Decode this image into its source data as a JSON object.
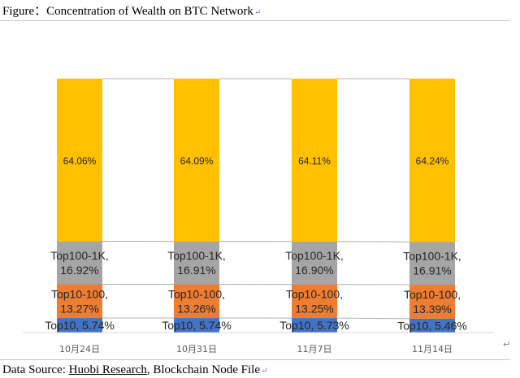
{
  "title": {
    "prefix": "Figure：",
    "text": "Concentration of Wealth on BTC Network"
  },
  "source": {
    "prefix": "Data Source: ",
    "link": "Huobi Research",
    "suffix": ", Blockchain Node File"
  },
  "chart_data": {
    "type": "bar",
    "stacked": true,
    "percent": true,
    "categories": [
      "10月24日",
      "10月31日",
      "11月7日",
      "11月14日"
    ],
    "series": [
      {
        "name": "Top10",
        "color": "#4472c4",
        "values": [
          5.74,
          5.74,
          5.73,
          5.46
        ],
        "labels": [
          "Top10, 5.74%",
          "Top10, 5.74%",
          "Top10, 5.73%",
          "Top10, 5.46%"
        ]
      },
      {
        "name": "Top10-100",
        "color": "#ed7d31",
        "values": [
          13.27,
          13.26,
          13.25,
          13.39
        ],
        "labels": [
          [
            "Top10-100,",
            "13.27%"
          ],
          [
            "Top10-100,",
            "13.26%"
          ],
          [
            "Top10-100,",
            "13.25%"
          ],
          [
            "Top10-100,",
            "13.39%"
          ]
        ]
      },
      {
        "name": "Top100-1K",
        "color": "#a5a5a5",
        "values": [
          16.92,
          16.91,
          16.9,
          16.91
        ],
        "labels": [
          [
            "Top100-1K,",
            "16.92%"
          ],
          [
            "Top100-1K,",
            "16.91%"
          ],
          [
            "Top100-1K,",
            "16.90%"
          ],
          [
            "Top100-1K,",
            "16.91%"
          ]
        ]
      },
      {
        "name": "",
        "color": "#ffc000",
        "values": [
          64.06,
          64.09,
          64.11,
          64.24
        ],
        "labels": [
          "64.06%",
          "64.09%",
          "64.11%",
          "64.24%"
        ]
      }
    ],
    "ylim": [
      0,
      100
    ],
    "series_lines": true,
    "legend": "none",
    "grid": false,
    "xlabel": "",
    "ylabel": ""
  }
}
